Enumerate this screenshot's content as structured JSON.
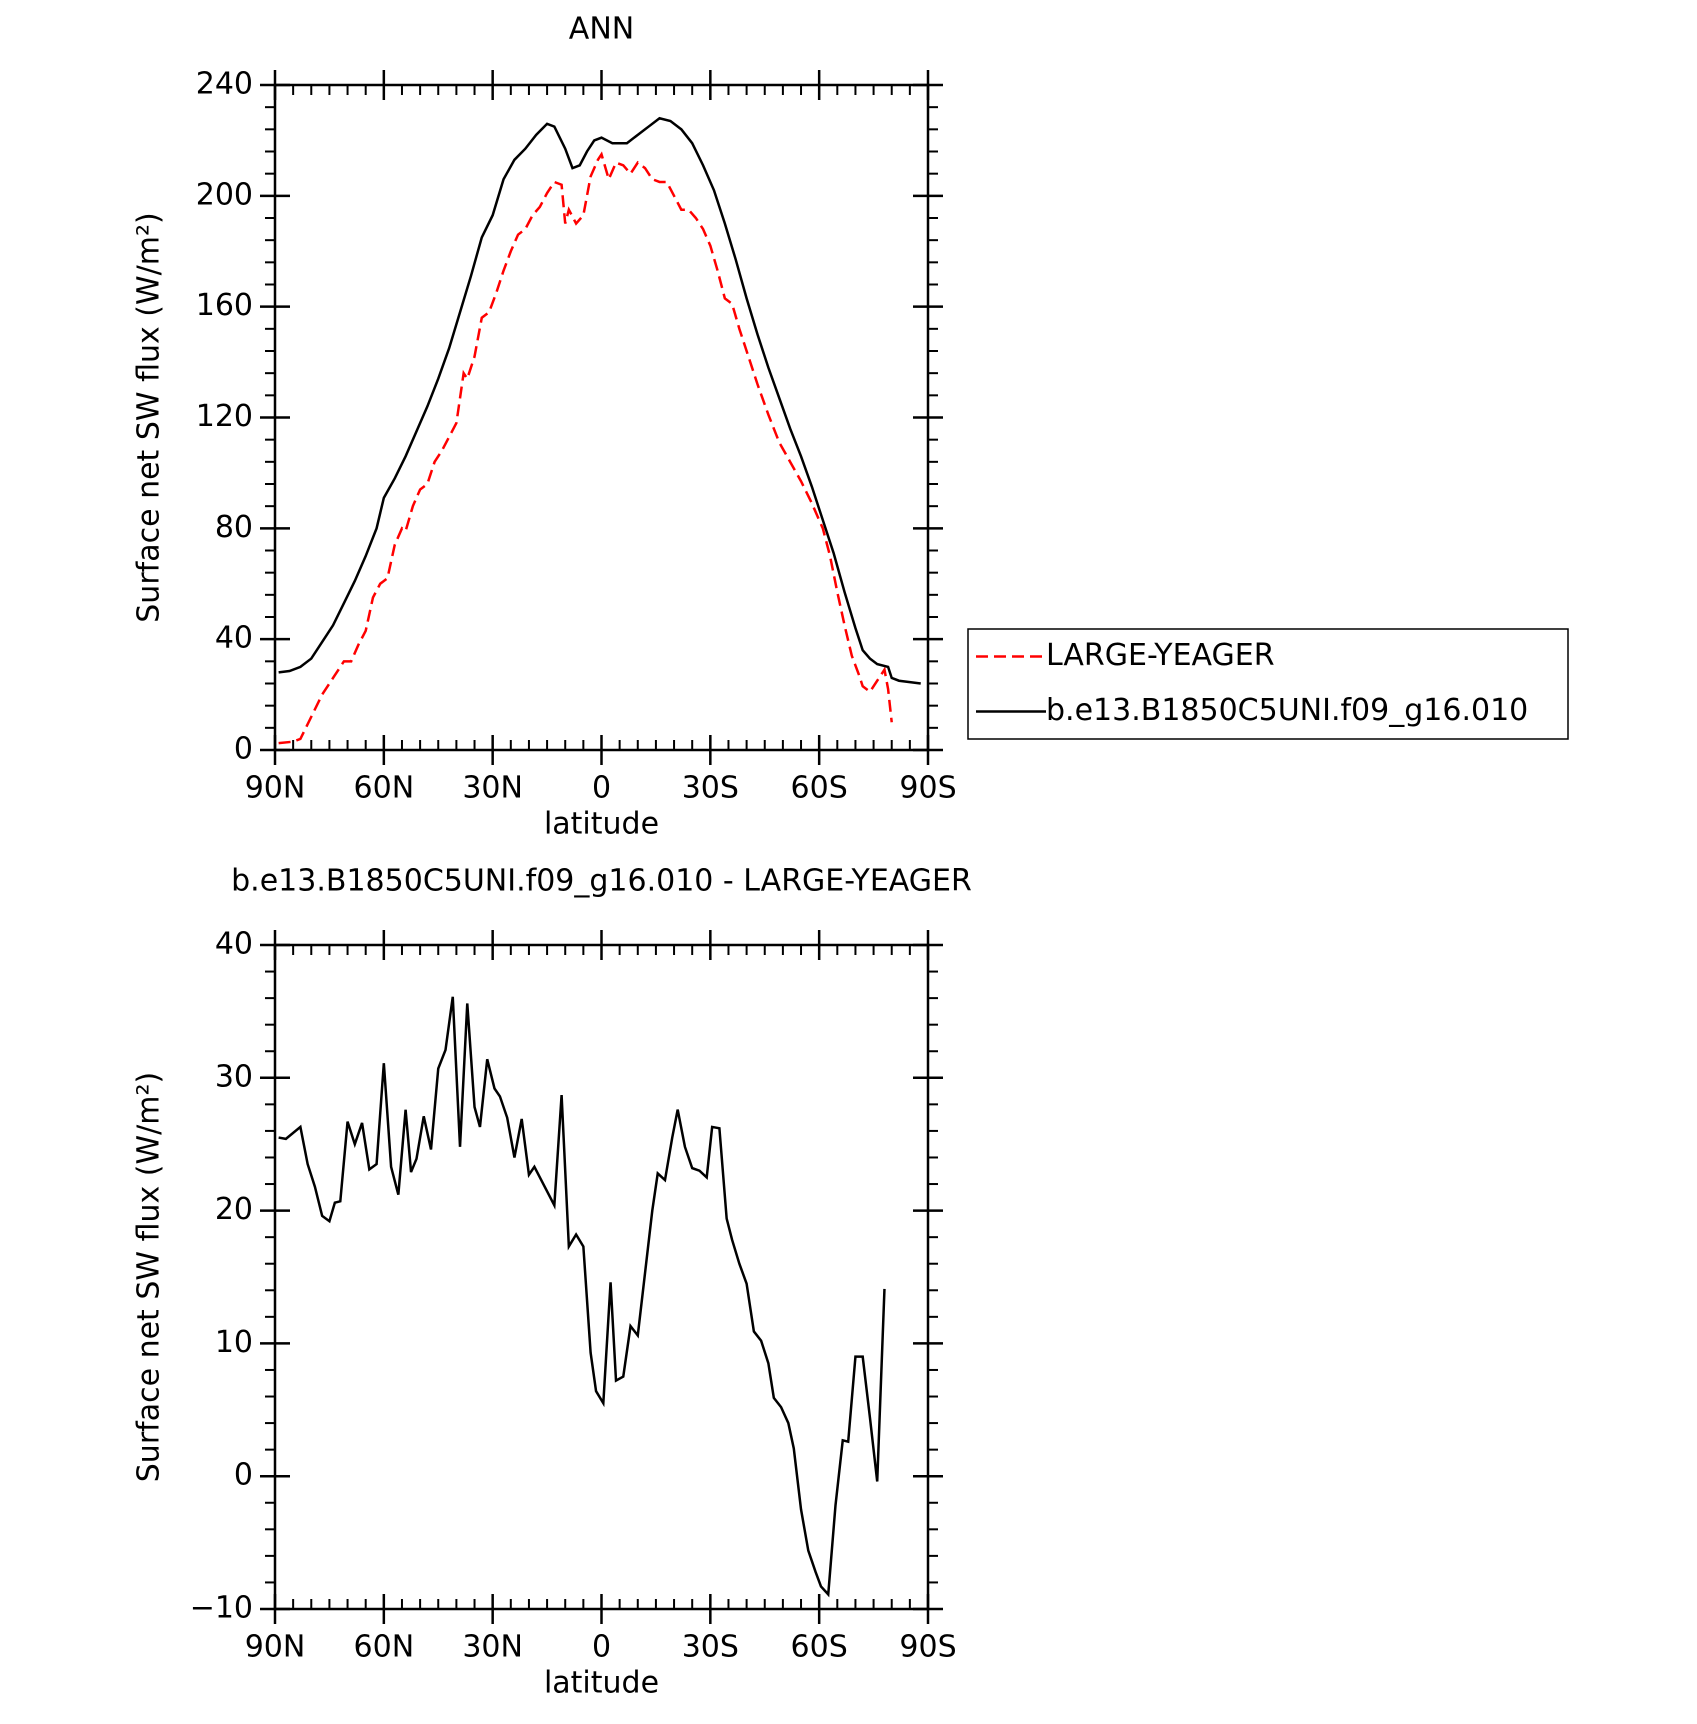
{
  "chart_data": [
    {
      "type": "line",
      "title": "ANN",
      "xlabel": "latitude",
      "ylabel": "Surface net SW flux (W/m²)",
      "xlim": [
        90,
        -90
      ],
      "xticks": [
        {
          "value": 90,
          "label": "90N"
        },
        {
          "value": 60,
          "label": "60N"
        },
        {
          "value": 30,
          "label": "30N"
        },
        0,
        {
          "value": -30,
          "label": "30S"
        },
        {
          "value": -60,
          "label": "60S"
        },
        {
          "value": -90,
          "label": "90S"
        }
      ],
      "ylim": [
        0,
        240
      ],
      "yticks": [
        0,
        40,
        80,
        120,
        160,
        200,
        240
      ],
      "legend": "right",
      "series": [
        {
          "name": "LARGE-YEAGER",
          "color": "#ff0000",
          "style": "dashed",
          "x": [
            89,
            85,
            83,
            80,
            77,
            74,
            71,
            69,
            67,
            65,
            63,
            61,
            59,
            57,
            55,
            54,
            52,
            50,
            48,
            46,
            44,
            42,
            40,
            38,
            37,
            35,
            33,
            31,
            29,
            27,
            25,
            23,
            21,
            19,
            17,
            15,
            13,
            11,
            10,
            9,
            7,
            5,
            3,
            1,
            0,
            -2,
            -4,
            -6,
            -8,
            -10,
            -12,
            -14,
            -16,
            -18,
            -20,
            -22,
            -24,
            -26,
            -28,
            -30,
            -32,
            -34,
            -36,
            -38,
            -40,
            -43,
            -46,
            -49,
            -52,
            -55,
            -58,
            -61,
            -63,
            -65,
            -67,
            -69,
            -71,
            -72,
            -74,
            -76,
            -78,
            -79,
            -80
          ],
          "values": [
            2.5,
            3,
            4,
            12,
            20,
            26,
            32,
            32,
            38,
            43,
            55,
            60,
            62,
            74,
            80,
            79,
            88,
            94,
            96,
            104,
            108,
            113,
            118,
            136,
            134,
            142,
            156,
            158,
            165,
            173,
            180,
            186,
            188,
            193,
            196,
            201,
            205,
            204,
            190,
            195,
            190,
            193,
            207,
            213,
            215,
            206,
            212,
            211,
            208,
            212,
            210,
            206,
            205,
            205,
            200,
            195,
            195,
            192,
            188,
            182,
            173,
            163,
            161,
            152,
            144,
            132,
            121,
            111,
            104,
            97,
            89,
            80,
            70,
            57,
            45,
            34,
            27,
            23,
            21,
            25,
            29,
            22,
            10
          ]
        },
        {
          "name": "b.e13.B1850C5UNI.f09_g16.010",
          "color": "#000000",
          "style": "solid",
          "x": [
            89,
            86,
            83,
            80,
            77,
            74,
            71,
            68,
            65,
            62,
            60,
            57,
            54,
            51,
            48,
            45,
            42,
            39,
            36,
            33,
            30,
            27,
            24,
            21,
            18,
            15,
            13,
            10,
            8,
            6,
            4,
            2,
            0,
            -3,
            -7,
            -10,
            -13,
            -16,
            -19,
            -22,
            -25,
            -28,
            -31,
            -34,
            -37,
            -40,
            -43,
            -46,
            -49,
            -52,
            -55,
            -58,
            -61,
            -64,
            -67,
            -70,
            -72,
            -74,
            -76,
            -79,
            -80,
            -82,
            -85,
            -88
          ],
          "values": [
            28,
            28.5,
            30,
            33,
            39,
            45,
            53,
            61,
            70,
            80,
            91,
            98,
            106,
            115,
            124,
            134,
            145,
            158,
            171,
            185,
            193,
            206,
            213,
            217,
            222,
            226,
            225,
            217,
            210,
            211,
            216,
            220,
            221,
            219,
            219,
            222,
            225,
            228,
            227,
            224,
            219,
            211,
            202,
            190,
            177,
            163,
            150,
            138,
            127,
            116,
            106,
            95,
            83,
            71,
            57,
            44,
            36,
            33,
            31,
            30,
            26,
            25,
            24.5,
            24
          ]
        }
      ]
    },
    {
      "type": "line",
      "title": "b.e13.B1850C5UNI.f09_g16.010 - LARGE-YEAGER",
      "xlabel": "latitude",
      "ylabel": "Surface net SW flux (W/m²)",
      "xlim": [
        90,
        -90
      ],
      "xticks": [
        {
          "value": 90,
          "label": "90N"
        },
        {
          "value": 60,
          "label": "60N"
        },
        {
          "value": 30,
          "label": "30N"
        },
        0,
        {
          "value": -30,
          "label": "30S"
        },
        {
          "value": -60,
          "label": "60S"
        },
        {
          "value": -90,
          "label": "90S"
        }
      ],
      "ylim": [
        -10,
        40
      ],
      "yticks": [
        {
          "value": -10,
          "label": "−10"
        },
        0,
        10,
        20,
        30,
        40
      ],
      "series": [
        {
          "color": "#000000",
          "style": "solid",
          "x": [
            89,
            87,
            83,
            81,
            79,
            77,
            75,
            73.5,
            72,
            70,
            68,
            66,
            64,
            62,
            60,
            58,
            56,
            54,
            52.5,
            51,
            49,
            47,
            45,
            43,
            41,
            39,
            37,
            35,
            33.5,
            31.5,
            29.5,
            28,
            26,
            24,
            22,
            20,
            18.5,
            13,
            11,
            9,
            7,
            5,
            3,
            1.5,
            -0.5,
            -2.5,
            -4,
            -6,
            -8,
            -10,
            -14,
            -15.5,
            -17.5,
            -19.5,
            -21,
            -23,
            -25,
            -27,
            -29,
            -30.5,
            -32.5,
            -34.5,
            -36,
            -38,
            -40,
            -42,
            -44,
            -46,
            -47.5,
            -49.5,
            -51.5,
            -53,
            -55,
            -57,
            -59,
            -60.5,
            -62.5,
            -64.5,
            -66.5,
            -68,
            -70,
            -72,
            -74,
            -76,
            -78
          ],
          "values": [
            25.5,
            25.4,
            26.3,
            23.5,
            21.8,
            19.6,
            19.2,
            20.6,
            20.7,
            26.7,
            25,
            26.6,
            23.1,
            23.5,
            31.1,
            23.3,
            21.2,
            27.6,
            22.9,
            23.9,
            27.1,
            24.6,
            30.7,
            32.1,
            36.1,
            24.8,
            35.6,
            27.8,
            26.3,
            31.4,
            29.2,
            28.6,
            27,
            24,
            26.9,
            22.7,
            23.3,
            20.4,
            28.7,
            17.3,
            18.2,
            17.3,
            9.3,
            6.4,
            5.5,
            14.6,
            7.2,
            7.5,
            11.3,
            10.6,
            20,
            22.8,
            22.3,
            25.5,
            27.6,
            24.8,
            23.2,
            23,
            22.5,
            26.3,
            26.2,
            19.4,
            17.8,
            16,
            14.5,
            10.9,
            10.2,
            8.5,
            5.9,
            5.2,
            4,
            2.1,
            -2.5,
            -5.6,
            -7.2,
            -8.3,
            -8.9,
            -2.2,
            2.7,
            2.6,
            9,
            9,
            4.4,
            -0.4,
            14.1
          ]
        }
      ]
    }
  ]
}
